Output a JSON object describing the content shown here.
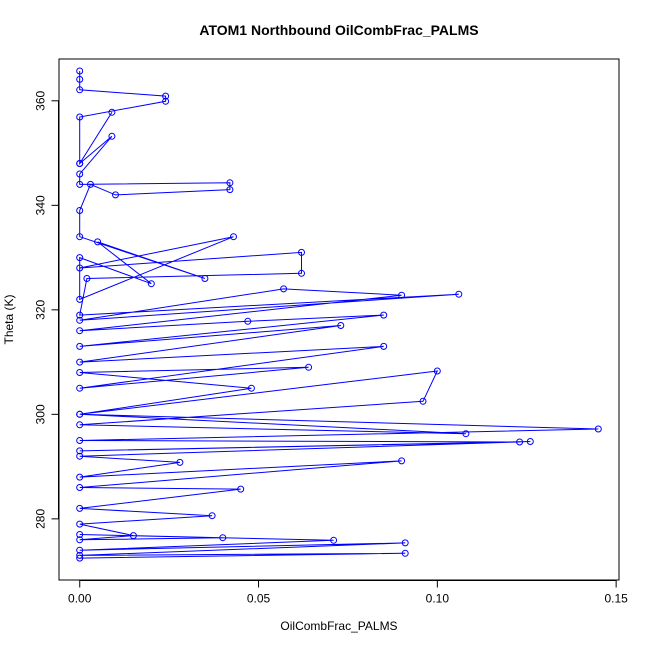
{
  "chart_data": {
    "type": "line",
    "title": "ATOM1 Northbound OilCombFrac_PALMS",
    "xlabel": "OilCombFrac_PALMS",
    "ylabel": "Theta (K)",
    "xlim": [
      -0.0058,
      0.1508
    ],
    "ylim": [
      268.3,
      368.0
    ],
    "x_ticks": [
      0.0,
      0.05,
      0.1,
      0.15
    ],
    "x_tick_labels": [
      "0.00",
      "0.05",
      "0.10",
      "0.15"
    ],
    "y_ticks": [
      280,
      300,
      320,
      340,
      360
    ],
    "y_tick_labels": [
      "280",
      "300",
      "320",
      "340",
      "360"
    ],
    "grid": false,
    "legend": "none",
    "colors": {
      "series": "#0000ff",
      "axis": "#000000",
      "background": "#ffffff"
    },
    "series": [
      {
        "marker": "open-circle",
        "x": [
          0.0,
          0.0,
          0.0,
          0.024,
          0.024,
          0.0,
          0.0,
          0.009,
          0.0,
          0.009,
          0.0,
          0.0,
          0.042,
          0.042,
          0.01,
          0.003,
          0.0,
          0.0,
          0.035,
          0.005,
          0.02,
          0.0,
          0.0,
          0.043,
          0.0,
          0.062,
          0.062,
          0.002,
          0.0,
          0.106,
          0.0,
          0.057,
          0.09,
          0.0,
          0.047,
          0.085,
          0.0,
          0.073,
          0.0,
          0.085,
          0.0,
          0.064,
          0.0,
          0.048,
          0.0,
          0.1,
          0.096,
          0.0,
          0.108,
          0.0,
          0.145,
          0.0,
          0.123,
          0.0,
          0.126,
          0.0,
          0.028,
          0.0,
          0.09,
          0.0,
          0.045,
          0.0,
          0.037,
          0.0,
          0.015,
          0.0,
          0.04,
          0.0,
          0.071,
          0.0,
          0.091,
          0.0,
          0.091,
          0.0
        ],
        "y": [
          365.7,
          364.1,
          362.1,
          360.9,
          359.9,
          356.9,
          348.0,
          357.8,
          348.0,
          353.2,
          346.0,
          344.0,
          344.3,
          343.0,
          342.0,
          344.0,
          339.0,
          334.0,
          326.0,
          333.0,
          325.0,
          330.0,
          322.0,
          334.0,
          328.0,
          331.0,
          327.0,
          326.0,
          319.0,
          323.0,
          318.0,
          324.0,
          322.8,
          316.0,
          317.8,
          319.0,
          313.0,
          317.0,
          310.0,
          313.0,
          305.0,
          309.0,
          308.0,
          305.0,
          300.0,
          308.3,
          302.5,
          298.0,
          296.3,
          300.0,
          297.2,
          295.0,
          294.7,
          293.0,
          294.8,
          292.0,
          290.8,
          288.0,
          291.1,
          286.0,
          285.7,
          282.0,
          280.6,
          279.0,
          276.8,
          276.0,
          276.4,
          277.0,
          275.9,
          274.0,
          275.4,
          273.0,
          273.4,
          272.5
        ]
      }
    ]
  }
}
